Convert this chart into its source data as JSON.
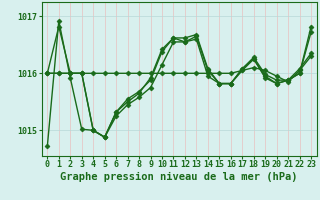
{
  "title": "Graphe pression niveau de la mer (hPa)",
  "background_color": "#d8f0ee",
  "grid_color_v": "#e8c0c0",
  "grid_color_h": "#b8d8d8",
  "line_color": "#1a6b1a",
  "marker_color": "#1a6b1a",
  "xlim": [
    -0.5,
    23.5
  ],
  "ylim": [
    1014.55,
    1017.25
  ],
  "yticks": [
    1015,
    1016,
    1017
  ],
  "xticks": [
    0,
    1,
    2,
    3,
    4,
    5,
    6,
    7,
    8,
    9,
    10,
    11,
    12,
    13,
    14,
    15,
    16,
    17,
    18,
    19,
    20,
    21,
    22,
    23
  ],
  "series": [
    [
      1016.0,
      1016.82,
      1016.0,
      1016.0,
      1015.0,
      1014.88,
      1015.25,
      1015.45,
      1015.58,
      1015.75,
      1016.15,
      1016.55,
      1016.55,
      1016.6,
      1015.95,
      1015.82,
      1015.82,
      1016.05,
      1016.25,
      1015.92,
      1015.82,
      1015.88,
      1016.0,
      1016.72
    ],
    [
      1016.0,
      1016.0,
      1016.0,
      1016.0,
      1016.0,
      1016.0,
      1016.0,
      1016.0,
      1016.0,
      1016.0,
      1016.0,
      1016.0,
      1016.0,
      1016.0,
      1016.0,
      1016.0,
      1016.0,
      1016.05,
      1016.1,
      1016.05,
      1015.95,
      1015.85,
      1016.05,
      1016.3
    ],
    [
      1014.72,
      1016.92,
      1015.92,
      1015.02,
      1015.0,
      1014.88,
      1015.32,
      1015.5,
      1015.65,
      1015.92,
      1016.42,
      1016.62,
      1016.62,
      1016.68,
      1016.08,
      1015.82,
      1015.82,
      1016.08,
      1016.28,
      1015.98,
      1015.88,
      1015.88,
      1016.0,
      1016.82
    ],
    [
      1016.0,
      1016.0,
      1016.0,
      1016.0,
      1015.0,
      1014.88,
      1015.32,
      1015.55,
      1015.68,
      1015.88,
      1016.38,
      1016.62,
      1016.55,
      1016.65,
      1016.05,
      1015.82,
      1015.82,
      1016.08,
      1016.25,
      1015.95,
      1015.82,
      1015.88,
      1016.08,
      1016.35
    ]
  ],
  "linewidth": 1.0,
  "markersize": 2.5,
  "title_fontsize": 7.5,
  "tick_fontsize": 6.0
}
